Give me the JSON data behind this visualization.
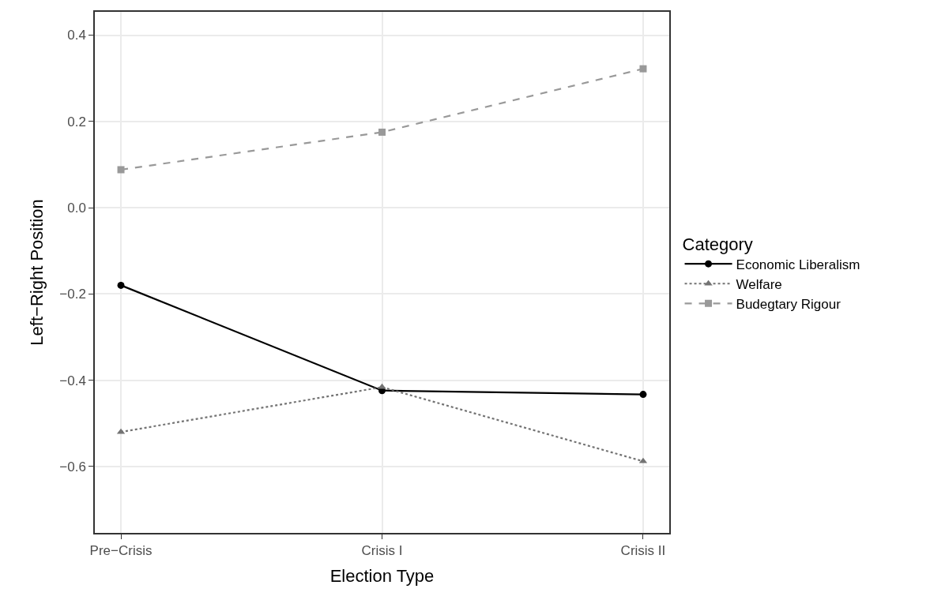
{
  "chart_data": {
    "type": "line",
    "xlabel": "Election Type",
    "ylabel": "Left−Right Position",
    "legend_title": "Category",
    "categories": [
      "Pre−Crisis",
      "Crisis I",
      "Crisis II"
    ],
    "series": [
      {
        "name": "Economic Liberalism",
        "color": "#000000",
        "values": [
          -0.18,
          -0.424,
          -0.433
        ],
        "marker": "circle",
        "line_style": "solid"
      },
      {
        "name": "Welfare",
        "color": "#737373",
        "values": [
          -0.52,
          -0.416,
          -0.588
        ],
        "marker": "triangle",
        "line_style": "dotted"
      },
      {
        "name": "Budegtary Rigour",
        "color": "#999999",
        "values": [
          0.088,
          0.175,
          0.322
        ],
        "marker": "square",
        "line_style": "dashed"
      }
    ],
    "ylim": [
      -0.754,
      0.454
    ],
    "yticks": [
      {
        "value": 0.4,
        "label": "0.4"
      },
      {
        "value": 0.2,
        "label": "0.2"
      },
      {
        "value": 0,
        "label": "0.0"
      },
      {
        "value": -0.2,
        "label": "−0.2"
      },
      {
        "value": -0.4,
        "label": "−0.4"
      },
      {
        "value": -0.6,
        "label": "−0.6"
      }
    ],
    "grid": true,
    "legend": "right"
  }
}
